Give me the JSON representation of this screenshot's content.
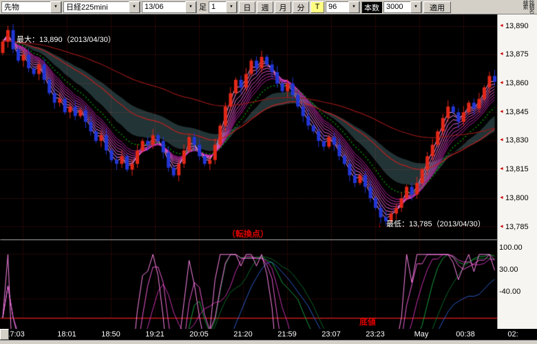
{
  "toolbar": {
    "instrument_type": "先物",
    "symbol": "日経225mini",
    "contract": "13/06",
    "ashi_label": "足",
    "interval_value": "1",
    "period_buttons": [
      "日",
      "週",
      "月",
      "分"
    ],
    "t_button": "T",
    "bars_interval": "96",
    "honsu_label": "本数",
    "bars_count": "3000",
    "apply_button": "適用",
    "search_label": "銘柄名検索"
  },
  "price_axis": {
    "labels": [
      "13,890",
      "13,875",
      "13,860",
      "13,845",
      "13,830",
      "13,815",
      "13,800",
      "13,785"
    ]
  },
  "osc_axis": {
    "labels": [
      "100.00",
      "30.00",
      "-40.00"
    ]
  },
  "time_axis": {
    "labels": [
      "17:03",
      "18:01",
      "18:50",
      "19:21",
      "20:05",
      "21:20",
      "21:59",
      "23:07",
      "23:23",
      "May",
      "00:38",
      "02:"
    ]
  },
  "annotations": {
    "max_label": "最大：13,890（2013/04/30）",
    "min_label": "最低：13,785（2013/04/30）",
    "turning_point": "（転換点）",
    "bottom_label": "底値"
  },
  "colors": {
    "candle_up": "#e22818",
    "candle_down": "#2236d6",
    "ma_green": "#00a000",
    "ma_red": "#c22020",
    "ma_red_long": "#8f1616",
    "cloud": "rgba(160,235,245,0.22)",
    "grid": "#6b1414",
    "panel_divider": "#b0b0b0",
    "baseline_red": "#c41c1c",
    "ribbon": [
      "#ffa8f4",
      "#ff8fee",
      "#fb77e6",
      "#f160da",
      "#e44cce",
      "#d63ac0",
      "#c62cb2",
      "#b320a2"
    ],
    "osc": {
      "fast": "#ff86e8",
      "fast2": "#ef5cd4",
      "fast3": "#c832b0",
      "slow_green": "#18a040",
      "slow_dark_green": "#0a6828",
      "slow_blue": "#2c5cc8"
    },
    "annotation_red": "#dd0000",
    "axis_tick_red": "#cc0000"
  },
  "chart_data": {
    "type": "candlestick+oscillator",
    "title": "日経225mini 13/06 1分足",
    "price_range": [
      13779,
      13896
    ],
    "grid_prices": [
      13890,
      13875,
      13860,
      13845,
      13830,
      13815,
      13800,
      13785
    ],
    "osc_grid": [
      100,
      30,
      -40
    ],
    "osc_range": [
      -120,
      120
    ],
    "max_price": 13890,
    "min_price": 13785,
    "first_open": 13876,
    "closes": [
      13882,
      13888,
      13878,
      13872,
      13875,
      13868,
      13865,
      13870,
      13862,
      13855,
      13850,
      13852,
      13845,
      13848,
      13843,
      13846,
      13840,
      13835,
      13830,
      13833,
      13825,
      13820,
      13818,
      13822,
      13815,
      13818,
      13825,
      13830,
      13828,
      13833,
      13830,
      13824,
      13816,
      13812,
      13818,
      13825,
      13832,
      13828,
      13822,
      13818,
      13820,
      13828,
      13838,
      13848,
      13855,
      13862,
      13858,
      13865,
      13872,
      13868,
      13874,
      13870,
      13866,
      13860,
      13856,
      13860,
      13854,
      13848,
      13843,
      13838,
      13835,
      13830,
      13827,
      13832,
      13828,
      13822,
      13818,
      13812,
      13808,
      13812,
      13806,
      13800,
      13795,
      13790,
      13788,
      13792,
      13795,
      13800,
      13806,
      13802,
      13808,
      13815,
      13822,
      13828,
      13835,
      13842,
      13848,
      13845,
      13840,
      13845,
      13850,
      13847,
      13852,
      13858,
      13864,
      13861
    ]
  }
}
